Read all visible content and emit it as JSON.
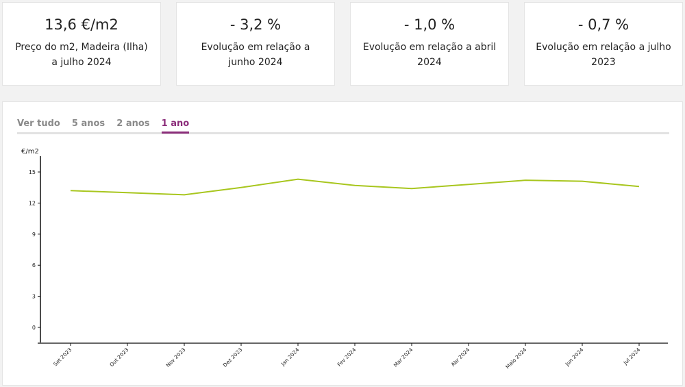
{
  "cards": [
    {
      "value": "13,6 €/m2",
      "label": "Preço do m2, Madeira (Ilha) a julho 2024"
    },
    {
      "value": "- 3,2 %",
      "label": "Evolução em relação a junho 2024"
    },
    {
      "value": "- 1,0 %",
      "label": "Evolução em relação a abril 2024"
    },
    {
      "value": "- 0,7 %",
      "label": "Evolução em relação a julho 2023"
    }
  ],
  "tabs": [
    {
      "label": "Ver tudo"
    },
    {
      "label": "5 anos"
    },
    {
      "label": "2 anos"
    },
    {
      "label": "1 ano",
      "active": true
    }
  ],
  "chart_data": {
    "type": "line",
    "title": "",
    "ylabel": "€/m2",
    "xlabel": "",
    "ylim": [
      -1.5,
      16.5
    ],
    "yticks": [
      0,
      3,
      6,
      9,
      12,
      15
    ],
    "categories": [
      "Set 2023",
      "Out 2023",
      "Nov 2023",
      "Dez 2023",
      "Jan 2024",
      "Fev 2024",
      "Mar 2024",
      "Abr 2024",
      "Maio 2024",
      "Jun 2024",
      "Jul 2024"
    ],
    "series": [
      {
        "name": "Preço do m2",
        "color": "#a8c61e",
        "values": [
          13.2,
          13.0,
          12.8,
          13.5,
          14.3,
          13.7,
          13.4,
          13.8,
          14.2,
          14.1,
          13.6
        ]
      }
    ],
    "grid": false
  }
}
